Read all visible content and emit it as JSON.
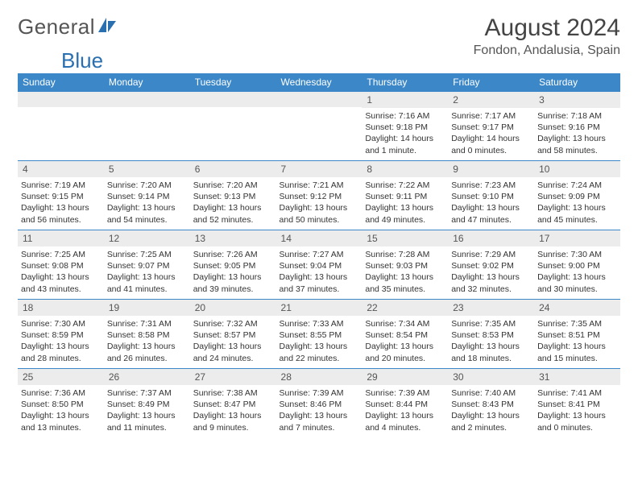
{
  "logo": {
    "word1": "General",
    "word2": "Blue"
  },
  "colors": {
    "header_bg": "#3b87c8",
    "header_text": "#ffffff",
    "daynum_bg": "#ececec",
    "text": "#333333",
    "border": "#3b87c8",
    "logo_gray": "#555555",
    "logo_blue": "#2a6fb0"
  },
  "title": "August 2024",
  "location": "Fondon, Andalusia, Spain",
  "weekdays": [
    "Sunday",
    "Monday",
    "Tuesday",
    "Wednesday",
    "Thursday",
    "Friday",
    "Saturday"
  ],
  "weeks": [
    [
      {
        "n": "",
        "lines": []
      },
      {
        "n": "",
        "lines": []
      },
      {
        "n": "",
        "lines": []
      },
      {
        "n": "",
        "lines": []
      },
      {
        "n": "1",
        "lines": [
          "Sunrise: 7:16 AM",
          "Sunset: 9:18 PM",
          "Daylight: 14 hours and 1 minute."
        ]
      },
      {
        "n": "2",
        "lines": [
          "Sunrise: 7:17 AM",
          "Sunset: 9:17 PM",
          "Daylight: 14 hours and 0 minutes."
        ]
      },
      {
        "n": "3",
        "lines": [
          "Sunrise: 7:18 AM",
          "Sunset: 9:16 PM",
          "Daylight: 13 hours and 58 minutes."
        ]
      }
    ],
    [
      {
        "n": "4",
        "lines": [
          "Sunrise: 7:19 AM",
          "Sunset: 9:15 PM",
          "Daylight: 13 hours and 56 minutes."
        ]
      },
      {
        "n": "5",
        "lines": [
          "Sunrise: 7:20 AM",
          "Sunset: 9:14 PM",
          "Daylight: 13 hours and 54 minutes."
        ]
      },
      {
        "n": "6",
        "lines": [
          "Sunrise: 7:20 AM",
          "Sunset: 9:13 PM",
          "Daylight: 13 hours and 52 minutes."
        ]
      },
      {
        "n": "7",
        "lines": [
          "Sunrise: 7:21 AM",
          "Sunset: 9:12 PM",
          "Daylight: 13 hours and 50 minutes."
        ]
      },
      {
        "n": "8",
        "lines": [
          "Sunrise: 7:22 AM",
          "Sunset: 9:11 PM",
          "Daylight: 13 hours and 49 minutes."
        ]
      },
      {
        "n": "9",
        "lines": [
          "Sunrise: 7:23 AM",
          "Sunset: 9:10 PM",
          "Daylight: 13 hours and 47 minutes."
        ]
      },
      {
        "n": "10",
        "lines": [
          "Sunrise: 7:24 AM",
          "Sunset: 9:09 PM",
          "Daylight: 13 hours and 45 minutes."
        ]
      }
    ],
    [
      {
        "n": "11",
        "lines": [
          "Sunrise: 7:25 AM",
          "Sunset: 9:08 PM",
          "Daylight: 13 hours and 43 minutes."
        ]
      },
      {
        "n": "12",
        "lines": [
          "Sunrise: 7:25 AM",
          "Sunset: 9:07 PM",
          "Daylight: 13 hours and 41 minutes."
        ]
      },
      {
        "n": "13",
        "lines": [
          "Sunrise: 7:26 AM",
          "Sunset: 9:05 PM",
          "Daylight: 13 hours and 39 minutes."
        ]
      },
      {
        "n": "14",
        "lines": [
          "Sunrise: 7:27 AM",
          "Sunset: 9:04 PM",
          "Daylight: 13 hours and 37 minutes."
        ]
      },
      {
        "n": "15",
        "lines": [
          "Sunrise: 7:28 AM",
          "Sunset: 9:03 PM",
          "Daylight: 13 hours and 35 minutes."
        ]
      },
      {
        "n": "16",
        "lines": [
          "Sunrise: 7:29 AM",
          "Sunset: 9:02 PM",
          "Daylight: 13 hours and 32 minutes."
        ]
      },
      {
        "n": "17",
        "lines": [
          "Sunrise: 7:30 AM",
          "Sunset: 9:00 PM",
          "Daylight: 13 hours and 30 minutes."
        ]
      }
    ],
    [
      {
        "n": "18",
        "lines": [
          "Sunrise: 7:30 AM",
          "Sunset: 8:59 PM",
          "Daylight: 13 hours and 28 minutes."
        ]
      },
      {
        "n": "19",
        "lines": [
          "Sunrise: 7:31 AM",
          "Sunset: 8:58 PM",
          "Daylight: 13 hours and 26 minutes."
        ]
      },
      {
        "n": "20",
        "lines": [
          "Sunrise: 7:32 AM",
          "Sunset: 8:57 PM",
          "Daylight: 13 hours and 24 minutes."
        ]
      },
      {
        "n": "21",
        "lines": [
          "Sunrise: 7:33 AM",
          "Sunset: 8:55 PM",
          "Daylight: 13 hours and 22 minutes."
        ]
      },
      {
        "n": "22",
        "lines": [
          "Sunrise: 7:34 AM",
          "Sunset: 8:54 PM",
          "Daylight: 13 hours and 20 minutes."
        ]
      },
      {
        "n": "23",
        "lines": [
          "Sunrise: 7:35 AM",
          "Sunset: 8:53 PM",
          "Daylight: 13 hours and 18 minutes."
        ]
      },
      {
        "n": "24",
        "lines": [
          "Sunrise: 7:35 AM",
          "Sunset: 8:51 PM",
          "Daylight: 13 hours and 15 minutes."
        ]
      }
    ],
    [
      {
        "n": "25",
        "lines": [
          "Sunrise: 7:36 AM",
          "Sunset: 8:50 PM",
          "Daylight: 13 hours and 13 minutes."
        ]
      },
      {
        "n": "26",
        "lines": [
          "Sunrise: 7:37 AM",
          "Sunset: 8:49 PM",
          "Daylight: 13 hours and 11 minutes."
        ]
      },
      {
        "n": "27",
        "lines": [
          "Sunrise: 7:38 AM",
          "Sunset: 8:47 PM",
          "Daylight: 13 hours and 9 minutes."
        ]
      },
      {
        "n": "28",
        "lines": [
          "Sunrise: 7:39 AM",
          "Sunset: 8:46 PM",
          "Daylight: 13 hours and 7 minutes."
        ]
      },
      {
        "n": "29",
        "lines": [
          "Sunrise: 7:39 AM",
          "Sunset: 8:44 PM",
          "Daylight: 13 hours and 4 minutes."
        ]
      },
      {
        "n": "30",
        "lines": [
          "Sunrise: 7:40 AM",
          "Sunset: 8:43 PM",
          "Daylight: 13 hours and 2 minutes."
        ]
      },
      {
        "n": "31",
        "lines": [
          "Sunrise: 7:41 AM",
          "Sunset: 8:41 PM",
          "Daylight: 13 hours and 0 minutes."
        ]
      }
    ]
  ]
}
